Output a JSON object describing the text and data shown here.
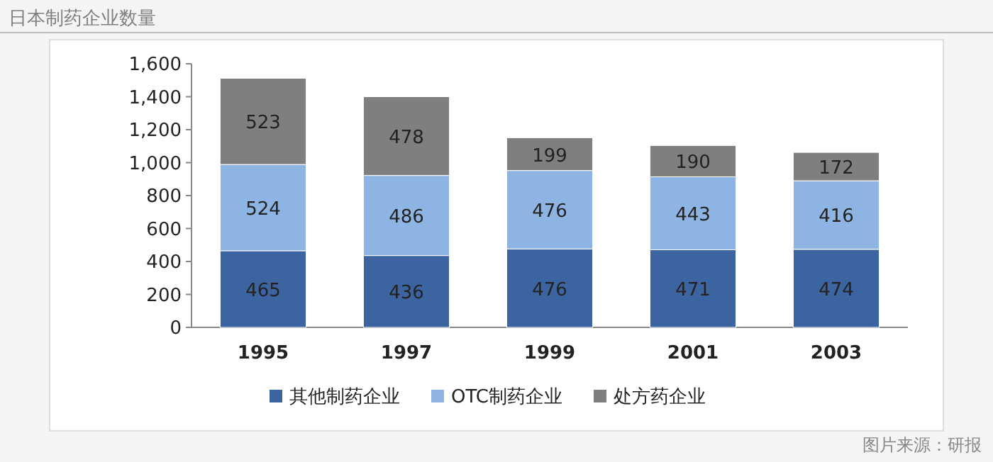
{
  "chart_data": {
    "type": "bar",
    "title": "日本制药企业数量",
    "categories": [
      "1995",
      "1997",
      "1999",
      "2001",
      "2003"
    ],
    "stacked": true,
    "series": [
      {
        "name": "其他制药企业",
        "color": "#3c64a0",
        "values": [
          465,
          436,
          476,
          471,
          474
        ]
      },
      {
        "name": "OTC制药企业",
        "color": "#8db4e2",
        "values": [
          524,
          486,
          476,
          443,
          416
        ]
      },
      {
        "name": "处方药企业",
        "color": "#7f7f7f",
        "values": [
          523,
          478,
          199,
          190,
          172
        ]
      }
    ],
    "ylim": [
      0,
      1600
    ],
    "yticks": [
      0,
      200,
      400,
      600,
      800,
      {
        "value": 1000,
        "label": "1,000"
      },
      {
        "value": 1200,
        "label": "1,200"
      },
      {
        "value": 1400,
        "label": "1,400"
      },
      {
        "value": 1600,
        "label": "1,600"
      }
    ],
    "data_labels": true,
    "legend": "bottom",
    "annotations": [
      "图片来源：研报"
    ]
  }
}
